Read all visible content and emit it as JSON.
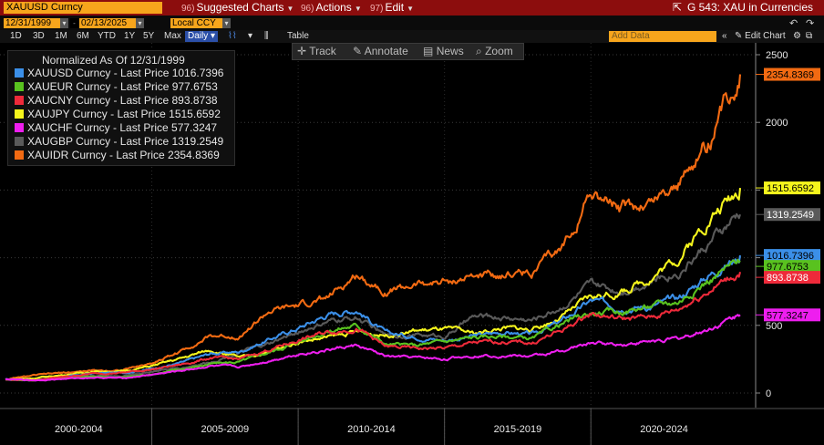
{
  "topbar": {
    "ticker": "XAUUSD Curncy",
    "menus": [
      {
        "num": "96)",
        "label": "Suggested Charts"
      },
      {
        "num": "96)",
        "label": "Actions"
      },
      {
        "num": "97)",
        "label": "Edit"
      }
    ],
    "title": "G 543: XAU in Currencies"
  },
  "daterow": {
    "start_date": "12/31/1999",
    "end_date": "02/13/2025",
    "currency": "Local CCY"
  },
  "rangerow": {
    "ranges": [
      "1D",
      "3D",
      "1M",
      "6M",
      "YTD",
      "1Y",
      "5Y",
      "Max"
    ],
    "period": "Daily",
    "table_label": "Table",
    "add_data_placeholder": "Add Data",
    "edit_chart": "Edit Chart"
  },
  "toolbar": {
    "track": "Track",
    "annotate": "Annotate",
    "news": "News",
    "zoom": "Zoom"
  },
  "legend": {
    "title": "Normalized As Of 12/31/1999",
    "items": [
      {
        "label": "XAUUSD Curncy - Last Price 1016.7396",
        "color": "#3b8fe8"
      },
      {
        "label": "XAUEUR Curncy - Last Price 977.6753",
        "color": "#59c21f"
      },
      {
        "label": "XAUCNY Curncy - Last Price 893.8738",
        "color": "#ee2a3a"
      },
      {
        "label": "XAUJPY Curncy - Last Price 1515.6592",
        "color": "#f5f51c"
      },
      {
        "label": "XAUCHF Curncy - Last Price 577.3247",
        "color": "#ee1eef"
      },
      {
        "label": "XAUGBP Curncy - Last Price 1319.2549",
        "color": "#5a5a5a"
      },
      {
        "label": "XAUIDR Curncy - Last Price 2354.8369",
        "color": "#f26a12"
      }
    ]
  },
  "chart_data": {
    "type": "line",
    "title": "Normalized As Of 12/31/1999",
    "xlabel": "",
    "ylabel": "",
    "ylim": [
      0,
      2500
    ],
    "yticks": [
      0,
      500,
      1000,
      1500,
      2000,
      2500
    ],
    "x_period_labels": [
      "2000-2004",
      "2005-2009",
      "2010-2014",
      "2015-2019",
      "2020-2024"
    ],
    "x": [
      2000,
      2001,
      2002,
      2003,
      2004,
      2005,
      2006,
      2007,
      2008,
      2009,
      2010,
      2011,
      2012,
      2013,
      2014,
      2015,
      2016,
      2017,
      2018,
      2019,
      2020,
      2021,
      2022,
      2023,
      2024,
      2025.1
    ],
    "series": [
      {
        "name": "XAUUSD Curncy",
        "color": "#3b8fe8",
        "last": "1016.7396",
        "values": [
          100,
          96,
          118,
          145,
          150,
          180,
          223,
          290,
          305,
          395,
          480,
          580,
          620,
          440,
          420,
          390,
          420,
          450,
          430,
          530,
          680,
          640,
          640,
          700,
          870,
          1016.7
        ]
      },
      {
        "name": "XAUEUR Curncy",
        "color": "#59c21f",
        "last": "977.6753",
        "values": [
          100,
          95,
          112,
          120,
          115,
          140,
          175,
          215,
          230,
          300,
          380,
          460,
          500,
          360,
          350,
          380,
          410,
          420,
          400,
          510,
          590,
          600,
          640,
          680,
          830,
          977.7
        ]
      },
      {
        "name": "XAUCNY Curncy",
        "color": "#ee2a3a",
        "last": "893.8738",
        "values": [
          100,
          96,
          118,
          145,
          150,
          175,
          210,
          260,
          250,
          320,
          390,
          450,
          480,
          340,
          330,
          330,
          370,
          380,
          370,
          460,
          590,
          550,
          560,
          620,
          760,
          893.9
        ]
      },
      {
        "name": "XAUJPY Curncy",
        "color": "#f5f51c",
        "last": "1515.6592",
        "values": [
          100,
          110,
          135,
          160,
          160,
          200,
          255,
          320,
          260,
          300,
          380,
          410,
          450,
          430,
          460,
          470,
          440,
          480,
          470,
          560,
          710,
          740,
          850,
          1000,
          1280,
          1515.7
        ]
      },
      {
        "name": "XAUCHF Curncy",
        "color": "#ee1eef",
        "last": "577.3247",
        "values": [
          100,
          95,
          105,
          115,
          110,
          135,
          165,
          200,
          190,
          240,
          290,
          320,
          350,
          270,
          260,
          250,
          280,
          280,
          270,
          310,
          370,
          360,
          380,
          400,
          470,
          577.3
        ]
      },
      {
        "name": "XAUGBP Curncy",
        "color": "#5a5a5a",
        "last": "1319.2549",
        "values": [
          100,
          100,
          118,
          130,
          125,
          160,
          185,
          230,
          300,
          360,
          450,
          520,
          560,
          420,
          430,
          420,
          560,
          560,
          540,
          640,
          790,
          760,
          830,
          900,
          1100,
          1319.3
        ]
      },
      {
        "name": "XAUIDR Curncy",
        "color": "#f26a12",
        "last": "2354.8369",
        "label_text_color": "#000",
        "values": [
          100,
          130,
          150,
          165,
          170,
          220,
          310,
          420,
          420,
          600,
          640,
          700,
          870,
          760,
          800,
          820,
          860,
          880,
          900,
          1050,
          1500,
          1350,
          1400,
          1550,
          1850,
          2354.8
        ]
      }
    ]
  }
}
